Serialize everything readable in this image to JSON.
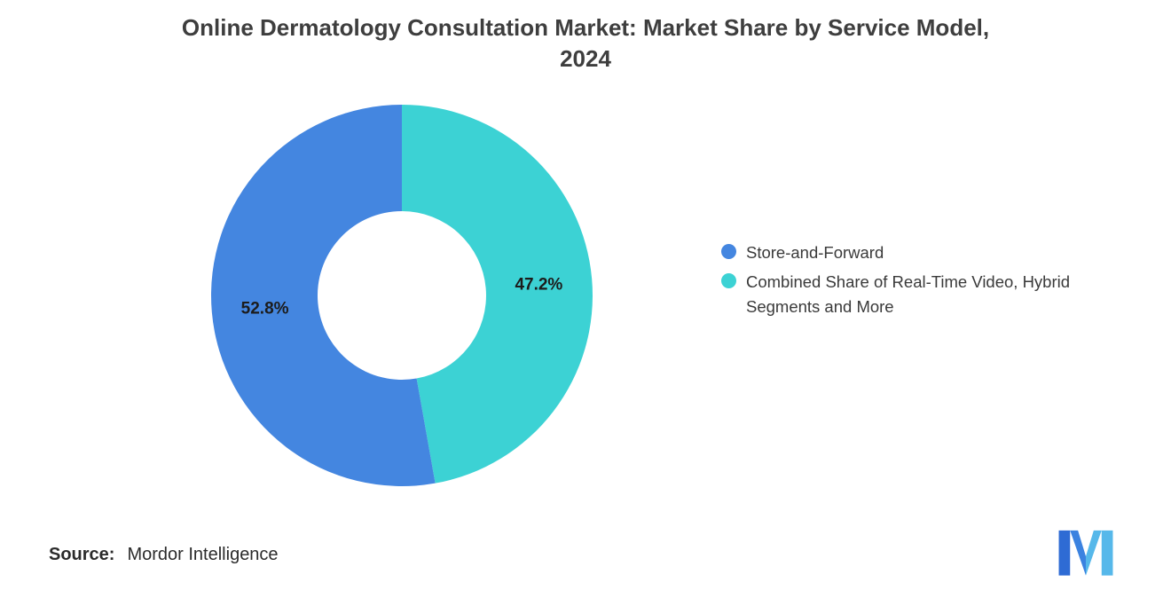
{
  "header": {
    "title_line1": "Online Dermatology Consultation Market: Market Share by Service Model,",
    "title_line2": "2024"
  },
  "chart_data": {
    "type": "pie",
    "donut": true,
    "title": "Online Dermatology Consultation Market: Market Share by Service Model, 2024",
    "legend_position": "right",
    "slices": [
      {
        "label": "Store-and-Forward",
        "value": 52.8,
        "data_label": "52.8%",
        "color": "#4486E0"
      },
      {
        "label": "Combined Share of Real-Time Video, Hybrid Segments and More",
        "value": 47.2,
        "data_label": "47.2%",
        "color": "#3CD2D4"
      }
    ]
  },
  "source": {
    "label": "Source:",
    "value": "Mordor Intelligence"
  },
  "logo": {
    "color_dark": "#2E6BD4",
    "color_mid": "#3B82E0",
    "color_light": "#56B8EA"
  }
}
